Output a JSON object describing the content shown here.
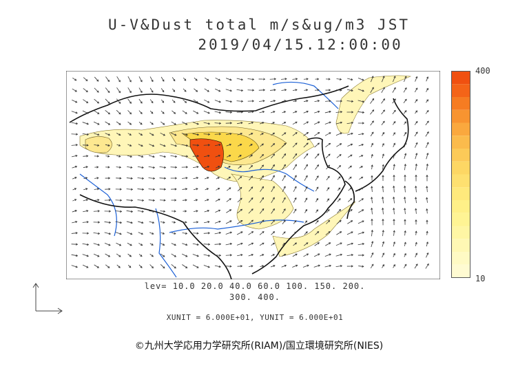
{
  "title_line1": "U-V&Dust total m/s&ug/m3 JST",
  "title_line2": "2019/04/15.12:00:00",
  "colorbar": {
    "max_label": "400",
    "min_label": "10",
    "colors": [
      "#f05010",
      "#f46418",
      "#f67c22",
      "#f89430",
      "#faa83e",
      "#fbbb4c",
      "#fcca58",
      "#fdd764",
      "#fee070",
      "#ffe97c",
      "#fff088",
      "#fff494",
      "#fff6a4",
      "#fff8b4",
      "#fffac4",
      "#fffbd2"
    ]
  },
  "levels_line1": "lev= 10.0 20.0 40.0 60.0 100. 150. 200.",
  "levels_line2": "300. 400.",
  "units_line": "XUNIT = 6.000E+01, YUNIT = 6.000E+01",
  "credit": "©九州大学応用力学研究所(RIAM)/国立環境研究所(NIES)",
  "colors": {
    "coast": "#111111",
    "river": "#1a5fd6",
    "dust_light": "#fff6b8",
    "dust_mid": "#fbd84a",
    "dust_high": "#f05010"
  }
}
